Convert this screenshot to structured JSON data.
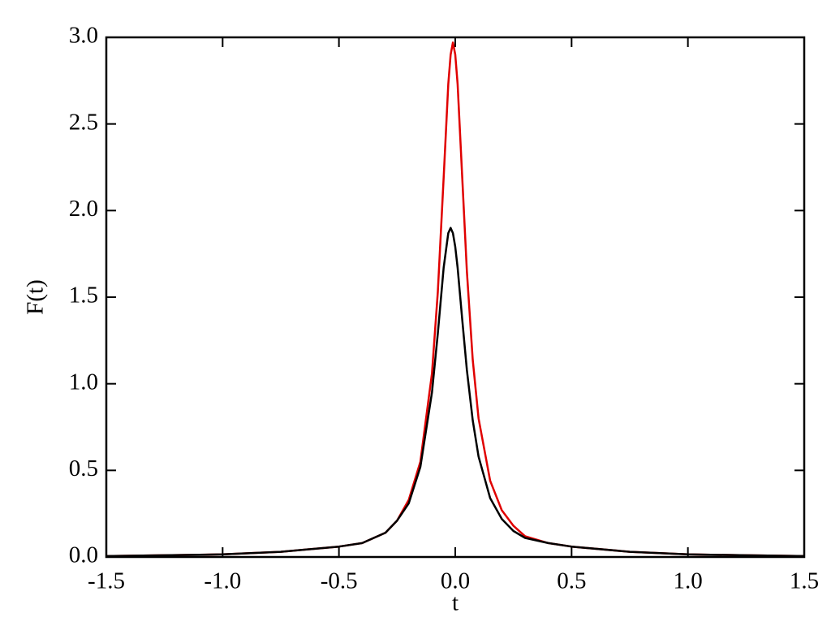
{
  "chart_data": {
    "type": "line",
    "x_label": "t",
    "y_label": "F(t)",
    "x": [
      -1.5,
      -1.25,
      -1.0,
      -0.75,
      -0.5,
      -0.4,
      -0.3,
      -0.25,
      -0.2,
      -0.15,
      -0.1,
      -0.075,
      -0.05,
      -0.03,
      -0.02,
      -0.01,
      0,
      0.01,
      0.03,
      0.05,
      0.075,
      0.1,
      0.15,
      0.2,
      0.25,
      0.3,
      0.4,
      0.5,
      0.75,
      1.0,
      1.25,
      1.5
    ],
    "series": [
      {
        "color": "#e00000",
        "values": [
          0.005,
          0.01,
          0.015,
          0.03,
          0.06,
          0.08,
          0.14,
          0.21,
          0.33,
          0.55,
          1.06,
          1.53,
          2.19,
          2.73,
          2.9,
          2.97,
          2.9,
          2.73,
          2.19,
          1.65,
          1.14,
          0.8,
          0.44,
          0.27,
          0.18,
          0.12,
          0.08,
          0.06,
          0.03,
          0.015,
          0.01,
          0.005
        ]
      },
      {
        "color": "#000000",
        "values": [
          0.005,
          0.01,
          0.015,
          0.03,
          0.06,
          0.08,
          0.14,
          0.21,
          0.31,
          0.52,
          0.95,
          1.29,
          1.67,
          1.87,
          1.9,
          1.87,
          1.79,
          1.67,
          1.37,
          1.08,
          0.79,
          0.58,
          0.34,
          0.22,
          0.15,
          0.11,
          0.08,
          0.06,
          0.03,
          0.015,
          0.01,
          0.005
        ]
      }
    ],
    "xlim": [
      -1.5,
      1.5
    ],
    "xticks": [
      {
        "value": -1.5,
        "label": "-1.5"
      },
      {
        "value": -1.0,
        "label": "-1.0"
      },
      {
        "value": -0.5,
        "label": "-0.5"
      },
      {
        "value": 0,
        "label": "0.0"
      },
      {
        "value": 0.5,
        "label": "0.5"
      },
      {
        "value": 1.0,
        "label": "1.0"
      },
      {
        "value": 1.5,
        "label": "1.5"
      }
    ],
    "ylim": [
      0,
      3
    ],
    "yticks": [
      {
        "value": 0,
        "label": "0.0"
      },
      {
        "value": 0.5,
        "label": "0.5"
      },
      {
        "value": 1.0,
        "label": "1.0"
      },
      {
        "value": 1.5,
        "label": "1.5"
      },
      {
        "value": 2.0,
        "label": "2.0"
      },
      {
        "value": 2.5,
        "label": "2.5"
      },
      {
        "value": 3.0,
        "label": "3.0"
      }
    ]
  }
}
